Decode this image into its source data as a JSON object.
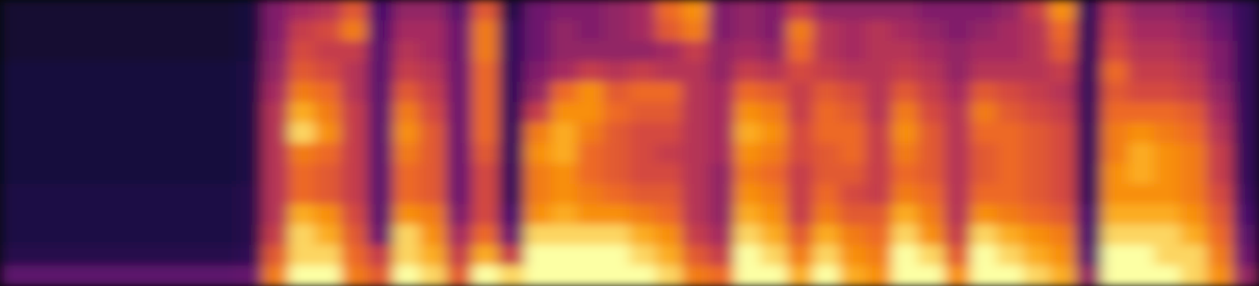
{
  "chart_data": {
    "type": "spectrogram",
    "tick_labels": false,
    "zlim": [
      0,
      100
    ],
    "cells": [
      [
        10,
        10,
        10,
        12,
        12,
        12,
        12,
        12,
        12,
        14,
        14,
        14,
        16,
        30
      ],
      [
        10,
        10,
        10,
        12,
        12,
        12,
        12,
        12,
        12,
        14,
        14,
        14,
        16,
        30
      ],
      [
        10,
        10,
        10,
        12,
        12,
        12,
        12,
        12,
        12,
        14,
        14,
        14,
        16,
        30
      ],
      [
        10,
        10,
        10,
        12,
        12,
        12,
        12,
        12,
        12,
        14,
        14,
        14,
        16,
        30
      ],
      [
        10,
        10,
        10,
        12,
        12,
        12,
        12,
        12,
        12,
        14,
        14,
        14,
        16,
        30
      ],
      [
        10,
        10,
        10,
        12,
        12,
        12,
        12,
        12,
        12,
        14,
        14,
        14,
        16,
        30
      ],
      [
        10,
        10,
        10,
        12,
        12,
        12,
        12,
        12,
        12,
        14,
        14,
        14,
        16,
        30
      ],
      [
        10,
        10,
        10,
        12,
        12,
        12,
        12,
        12,
        12,
        14,
        14,
        14,
        16,
        30
      ],
      [
        10,
        10,
        10,
        12,
        12,
        12,
        12,
        12,
        12,
        14,
        14,
        14,
        16,
        30
      ],
      [
        12,
        12,
        12,
        14,
        14,
        14,
        14,
        14,
        14,
        16,
        16,
        16,
        18,
        32
      ],
      [
        40,
        40,
        42,
        45,
        50,
        55,
        55,
        55,
        55,
        55,
        55,
        60,
        70,
        80
      ],
      [
        50,
        60,
        65,
        70,
        80,
        90,
        95,
        80,
        75,
        75,
        90,
        95,
        95,
        100
      ],
      [
        55,
        65,
        60,
        65,
        75,
        80,
        85,
        75,
        70,
        70,
        85,
        90,
        95,
        100
      ],
      [
        70,
        80,
        60,
        55,
        55,
        60,
        60,
        60,
        60,
        60,
        65,
        70,
        75,
        80
      ],
      [
        25,
        28,
        30,
        30,
        30,
        30,
        30,
        30,
        30,
        30,
        30,
        35,
        60,
        70
      ],
      [
        45,
        50,
        55,
        60,
        70,
        80,
        85,
        80,
        75,
        75,
        85,
        95,
        95,
        100
      ],
      [
        45,
        50,
        50,
        55,
        60,
        65,
        70,
        70,
        70,
        70,
        80,
        85,
        90,
        95
      ],
      [
        30,
        35,
        35,
        35,
        35,
        35,
        35,
        35,
        35,
        35,
        40,
        50,
        60,
        70
      ],
      [
        70,
        80,
        80,
        75,
        75,
        75,
        75,
        70,
        65,
        65,
        65,
        75,
        90,
        100
      ],
      [
        15,
        20,
        20,
        20,
        20,
        20,
        20,
        20,
        20,
        20,
        25,
        35,
        60,
        95
      ],
      [
        35,
        35,
        35,
        40,
        45,
        60,
        80,
        85,
        80,
        80,
        85,
        95,
        100,
        100
      ],
      [
        40,
        45,
        45,
        50,
        75,
        85,
        90,
        90,
        85,
        85,
        90,
        95,
        100,
        100
      ],
      [
        40,
        40,
        45,
        60,
        85,
        85,
        80,
        75,
        75,
        80,
        85,
        95,
        100,
        100
      ],
      [
        45,
        45,
        45,
        55,
        70,
        75,
        70,
        70,
        70,
        75,
        85,
        95,
        100,
        100
      ],
      [
        50,
        50,
        45,
        60,
        75,
        70,
        65,
        65,
        65,
        70,
        80,
        90,
        95,
        100
      ],
      [
        75,
        70,
        50,
        55,
        75,
        70,
        65,
        60,
        65,
        70,
        75,
        85,
        90,
        95
      ],
      [
        85,
        80,
        60,
        55,
        55,
        55,
        55,
        55,
        55,
        55,
        55,
        60,
        70,
        80
      ],
      [
        40,
        40,
        45,
        45,
        50,
        50,
        50,
        50,
        45,
        45,
        45,
        50,
        60,
        75
      ],
      [
        45,
        45,
        50,
        60,
        75,
        85,
        90,
        85,
        80,
        85,
        90,
        95,
        100,
        100
      ],
      [
        40,
        40,
        45,
        55,
        70,
        80,
        85,
        80,
        75,
        80,
        85,
        90,
        95,
        100
      ],
      [
        60,
        80,
        75,
        65,
        60,
        60,
        65,
        65,
        60,
        60,
        60,
        70,
        80,
        90
      ],
      [
        45,
        55,
        55,
        60,
        70,
        75,
        75,
        70,
        70,
        75,
        80,
        90,
        95,
        100
      ],
      [
        45,
        50,
        50,
        55,
        65,
        70,
        75,
        75,
        70,
        65,
        70,
        80,
        85,
        90
      ],
      [
        45,
        55,
        55,
        55,
        55,
        55,
        60,
        60,
        60,
        60,
        70,
        75,
        80,
        85
      ],
      [
        45,
        50,
        55,
        60,
        70,
        80,
        85,
        80,
        75,
        80,
        90,
        95,
        100,
        100
      ],
      [
        40,
        45,
        50,
        55,
        60,
        65,
        70,
        70,
        70,
        75,
        80,
        85,
        95,
        100
      ],
      [
        40,
        40,
        45,
        45,
        50,
        55,
        55,
        55,
        55,
        55,
        55,
        60,
        70,
        85
      ],
      [
        40,
        45,
        50,
        55,
        70,
        80,
        75,
        70,
        70,
        75,
        85,
        95,
        100,
        100
      ],
      [
        45,
        50,
        50,
        55,
        65,
        70,
        75,
        75,
        75,
        75,
        80,
        90,
        95,
        100
      ],
      [
        60,
        55,
        55,
        55,
        60,
        65,
        70,
        70,
        70,
        70,
        75,
        85,
        90,
        95
      ],
      [
        85,
        75,
        70,
        60,
        55,
        60,
        65,
        65,
        65,
        65,
        70,
        80,
        85,
        90
      ],
      [
        20,
        20,
        20,
        20,
        20,
        20,
        20,
        20,
        20,
        20,
        25,
        25,
        30,
        45
      ],
      [
        55,
        60,
        65,
        75,
        70,
        75,
        80,
        80,
        85,
        85,
        90,
        95,
        100,
        100
      ],
      [
        45,
        50,
        55,
        60,
        65,
        75,
        85,
        90,
        90,
        85,
        90,
        95,
        100,
        100
      ],
      [
        45,
        50,
        55,
        60,
        65,
        75,
        80,
        85,
        85,
        85,
        90,
        95,
        95,
        100
      ],
      [
        40,
        45,
        50,
        55,
        60,
        70,
        75,
        80,
        80,
        80,
        85,
        90,
        95,
        95
      ],
      [
        30,
        35,
        40,
        40,
        45,
        50,
        55,
        60,
        60,
        65,
        70,
        75,
        80,
        85
      ],
      [
        20,
        20,
        20,
        20,
        20,
        20,
        20,
        20,
        20,
        22,
        25,
        30,
        35,
        45
      ]
    ]
  }
}
